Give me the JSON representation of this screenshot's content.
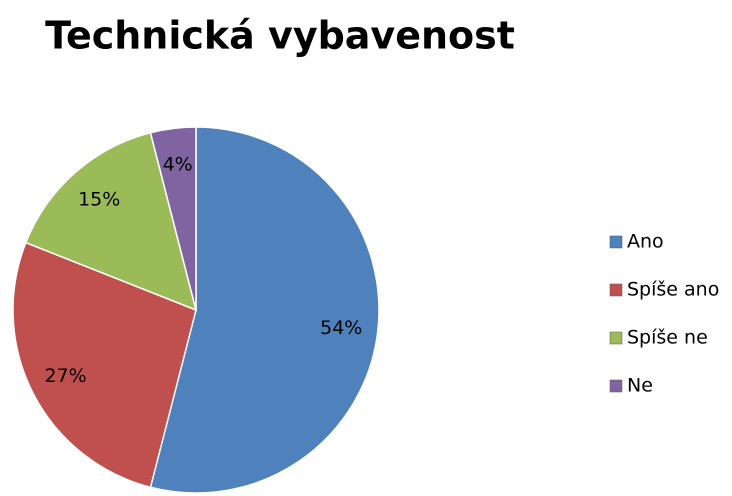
{
  "chart_data": {
    "type": "pie",
    "title": "Technická vybavenost",
    "categories": [
      "Ano",
      "Spíše ano",
      "Spíše ne",
      "Ne"
    ],
    "values": [
      54,
      27,
      15,
      4
    ],
    "value_labels": [
      "54%",
      "27%",
      "15%",
      "4%"
    ],
    "colors": [
      "#4f81bd",
      "#c0504d",
      "#9bbb59",
      "#8064a2"
    ],
    "legend": "right"
  }
}
